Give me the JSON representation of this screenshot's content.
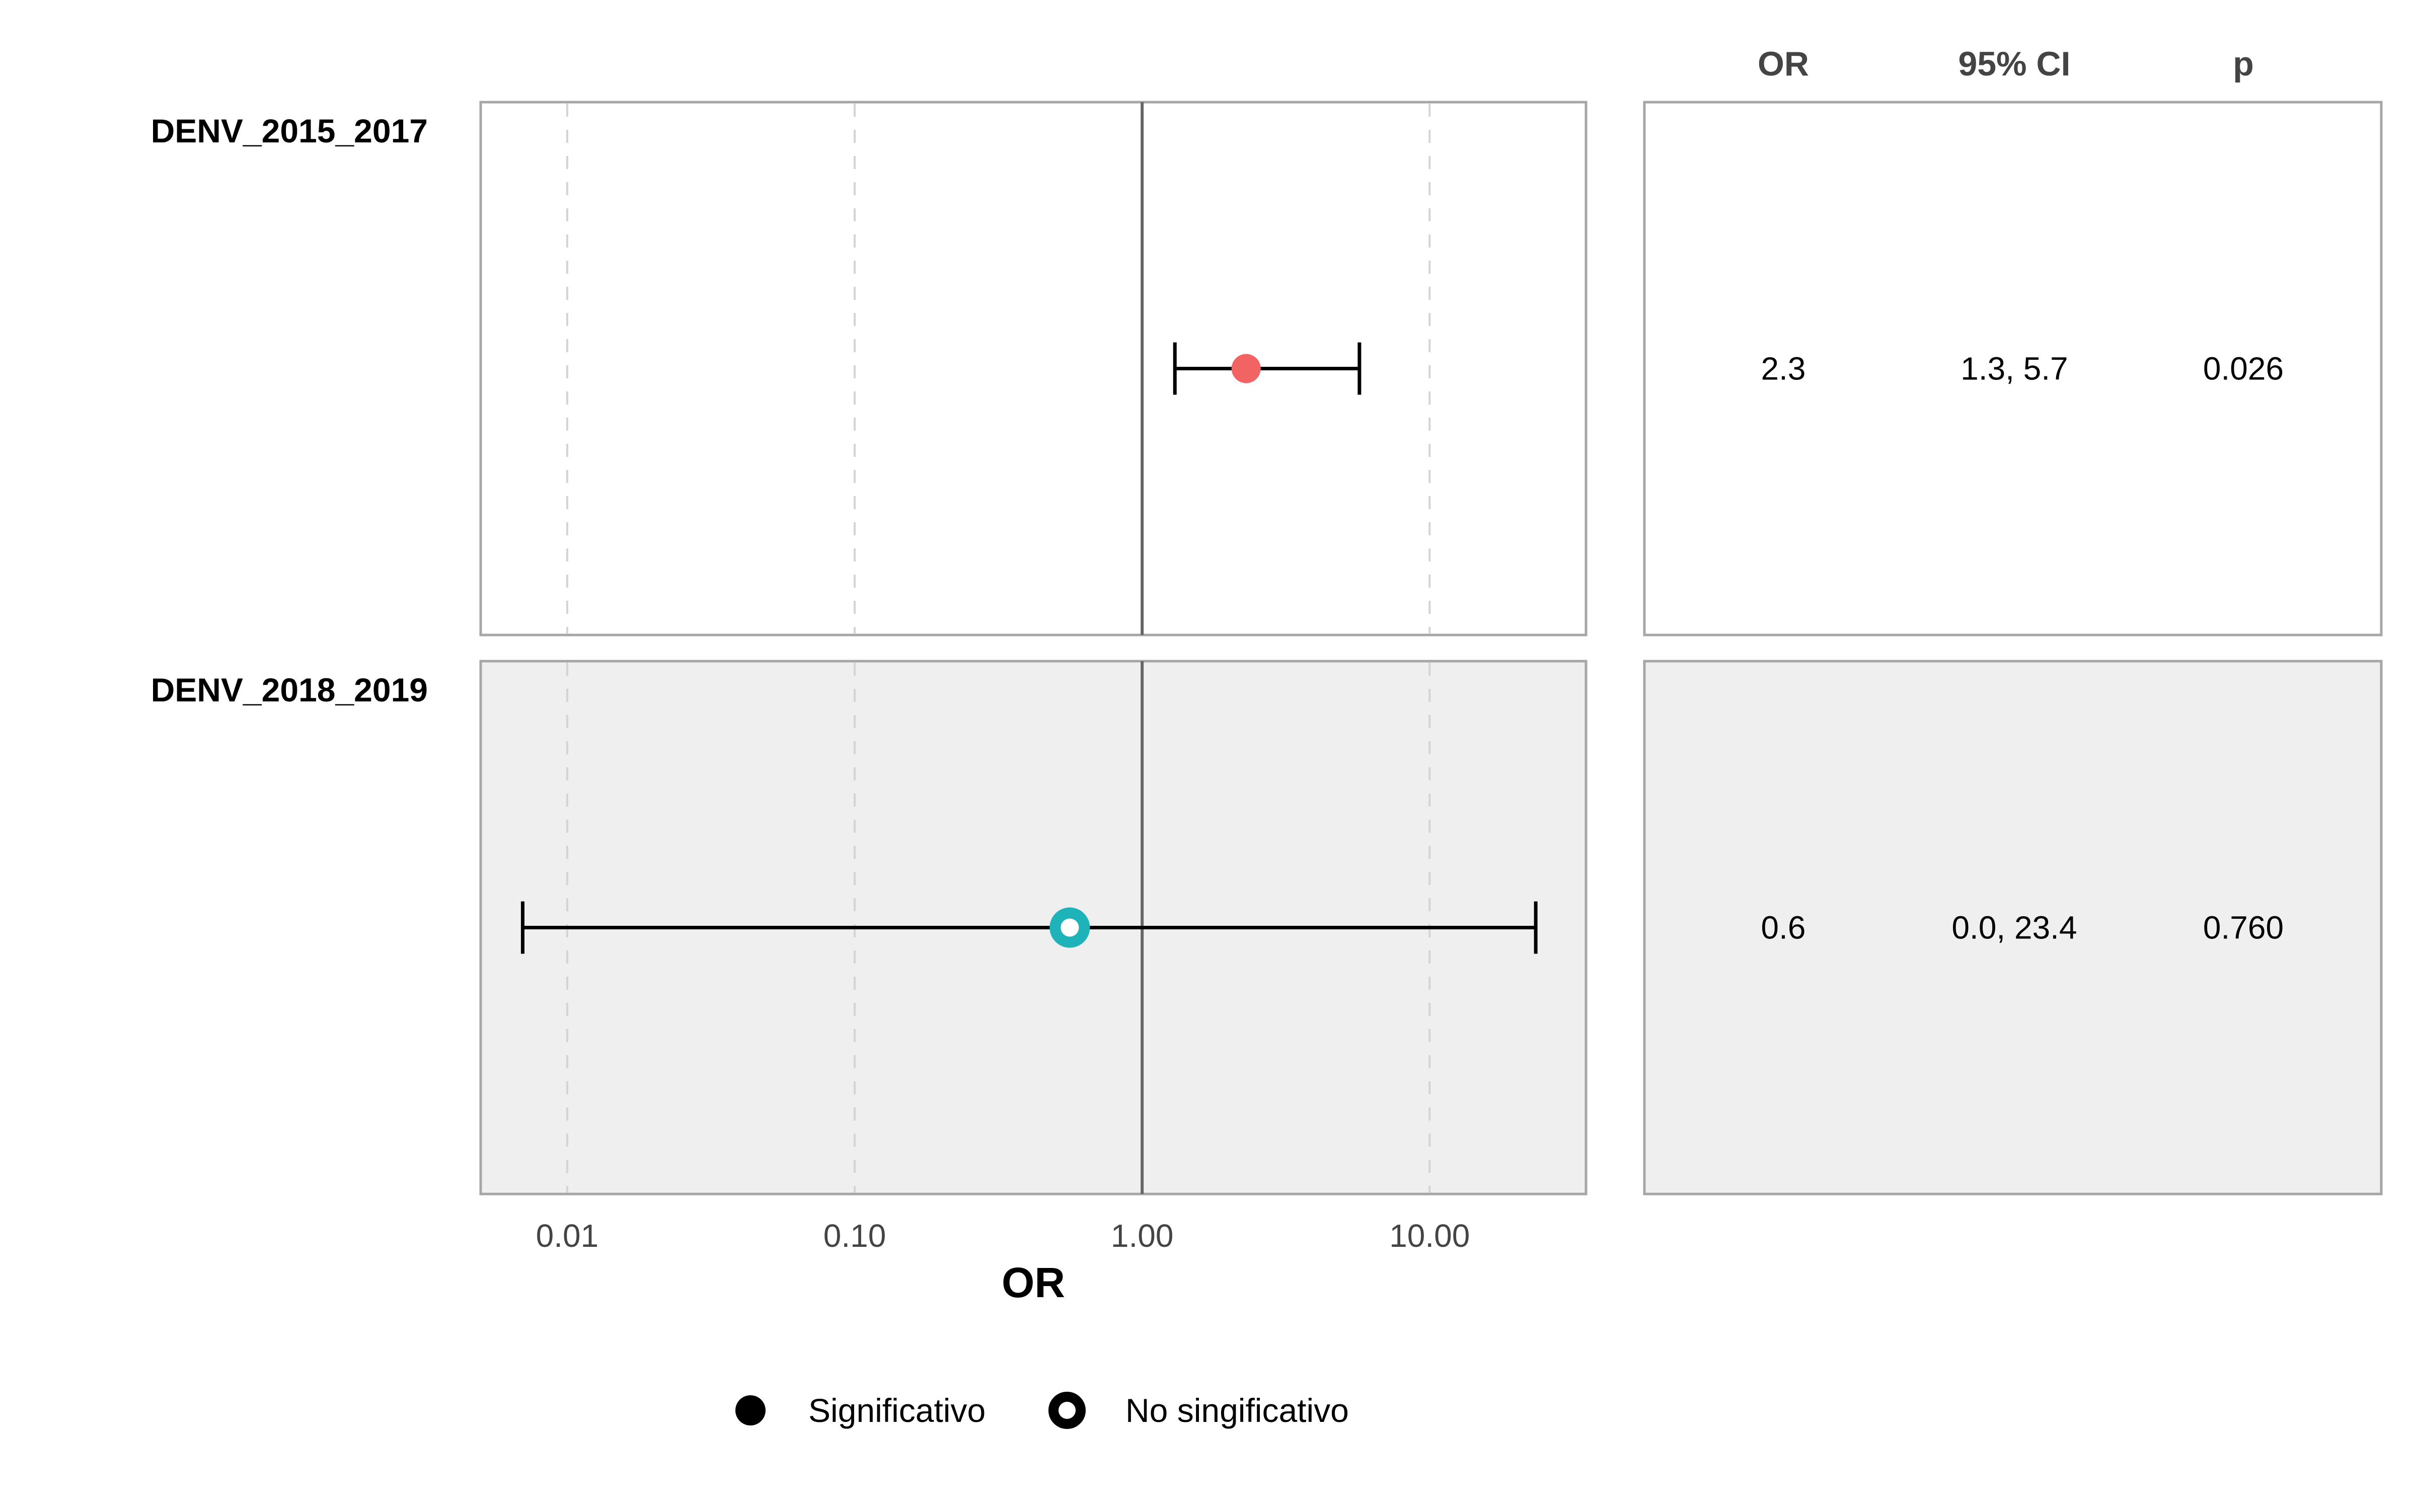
{
  "chart_data": {
    "type": "scatter",
    "subtype": "forest-plot",
    "x_scale": "log10",
    "xlabel": "OR",
    "xlim": [
      0.005,
      35
    ],
    "x_ticks": [
      0.01,
      0.1,
      1,
      10
    ],
    "x_tick_labels": [
      "0.01",
      "0.10",
      "1.00",
      "10.00"
    ],
    "reference_line": 1,
    "grid": "vertical dashed at ticks",
    "table_headers": [
      "OR",
      "95% CI",
      "p"
    ],
    "rows": [
      {
        "label": "DENV_2015_2017",
        "or": 2.3,
        "ci_low": 1.3,
        "ci_high": 5.7,
        "or_text": "2.3",
        "ci_text": "1.3, 5.7",
        "p_text": "0.026",
        "significant": true,
        "color": "#F26464",
        "panel_bg": "#FFFFFF"
      },
      {
        "label": "DENV_2018_2019",
        "or": 0.56,
        "ci_low": 0.007,
        "ci_high": 23.4,
        "or_text": "0.6",
        "ci_text": "0.0, 23.4",
        "p_text": "0.760",
        "significant": false,
        "color": "#1DB3B8",
        "panel_bg": "#EFEFEF"
      }
    ],
    "legend": {
      "position": "bottom",
      "items": [
        {
          "label": "Significativo",
          "marker": "filled-circle"
        },
        {
          "label": "No singificativo",
          "marker": "open-circle"
        }
      ]
    }
  }
}
